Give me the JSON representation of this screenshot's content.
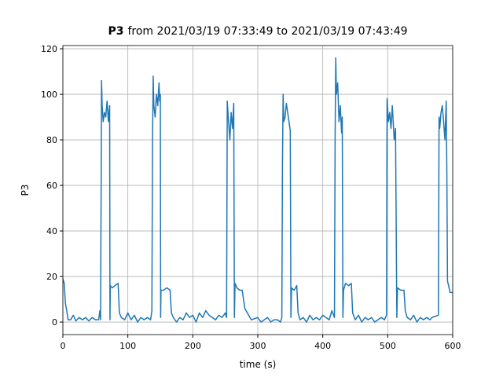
{
  "chart_data": {
    "type": "line",
    "title": [
      "P3",
      "from 2021/03/19 07:33:49 to 2021/03/19 07:43:49"
    ],
    "xlabel": "time (s)",
    "ylabel": "P3",
    "xlim": [
      0,
      600
    ],
    "ylim": [
      -5.5,
      121.4
    ],
    "xticks": [
      0,
      100,
      200,
      300,
      400,
      500,
      600
    ],
    "yticks": [
      0,
      20,
      40,
      60,
      80,
      100,
      120
    ],
    "grid": true,
    "x": [
      0,
      2,
      4,
      6,
      8,
      12,
      16,
      20,
      25,
      30,
      35,
      40,
      45,
      50,
      55,
      57,
      58,
      59,
      59.5,
      60.5,
      62,
      64,
      66,
      68,
      70,
      71,
      72,
      72.5,
      73,
      76,
      80,
      85,
      87,
      90,
      95,
      100,
      105,
      110,
      115,
      120,
      125,
      130,
      135,
      137,
      138,
      139,
      140,
      142,
      144,
      146,
      148,
      149,
      150,
      150.5,
      151,
      155,
      160,
      165,
      167,
      170,
      175,
      180,
      185,
      190,
      195,
      200,
      205,
      210,
      215,
      220,
      225,
      230,
      235,
      240,
      245,
      250,
      252,
      253,
      255,
      257,
      259,
      261,
      263,
      264,
      265,
      268,
      272,
      276,
      280,
      284,
      290,
      300,
      305,
      310,
      315,
      320,
      325,
      330,
      335,
      337,
      338,
      339,
      340,
      342,
      344,
      346,
      348,
      350,
      351,
      352,
      356,
      360,
      362,
      365,
      370,
      375,
      380,
      385,
      390,
      395,
      400,
      405,
      410,
      414,
      418,
      419,
      420,
      421,
      423,
      425,
      427,
      429,
      430,
      431,
      432,
      435,
      440,
      444,
      446,
      450,
      455,
      460,
      465,
      470,
      475,
      480,
      485,
      490,
      495,
      498,
      499,
      501,
      503,
      505,
      507,
      510,
      512,
      514,
      515,
      520,
      525,
      527,
      530,
      535,
      540,
      545,
      550,
      555,
      560,
      565,
      568,
      578,
      579,
      580,
      582,
      584,
      586,
      588,
      590,
      591,
      592,
      596,
      600
    ],
    "series": [
      {
        "name": "P3",
        "color": "#1f77b4",
        "values": [
          19,
          17,
          8,
          5,
          1,
          1,
          3,
          0.5,
          2,
          1,
          2,
          0.5,
          2,
          1,
          1,
          5,
          1,
          65,
          106,
          95,
          88,
          92,
          90,
          97,
          88,
          92,
          95,
          1,
          16,
          15,
          16,
          17,
          4,
          2,
          1,
          4,
          1,
          3,
          0,
          2,
          1,
          2,
          1,
          5,
          80,
          108,
          95,
          90,
          100,
          95,
          105,
          97,
          100,
          2,
          14,
          14,
          15,
          14,
          4,
          2,
          0,
          2,
          1,
          4,
          2,
          3,
          0,
          4,
          2,
          5,
          3,
          2,
          1,
          3,
          2,
          4,
          2,
          97,
          88,
          80,
          92,
          85,
          96,
          2,
          17,
          15,
          14,
          14,
          6,
          4,
          1,
          2,
          0,
          1,
          2,
          0,
          1,
          1,
          0,
          2,
          70,
          100,
          88,
          90,
          96,
          92,
          88,
          84,
          2,
          15,
          14,
          16,
          4,
          1,
          2,
          0,
          3,
          1,
          2,
          1,
          3,
          2,
          1,
          5,
          2,
          80,
          116,
          100,
          105,
          88,
          95,
          83,
          90,
          2,
          14,
          17,
          16,
          17,
          4,
          1,
          3,
          0,
          2,
          1,
          2,
          0,
          1,
          2,
          1,
          3,
          98,
          88,
          92,
          85,
          95,
          80,
          85,
          2,
          15,
          14,
          14,
          5,
          2,
          1,
          3,
          0,
          2,
          1,
          2,
          1,
          2,
          3,
          90,
          85,
          92,
          95,
          88,
          80,
          97,
          65,
          18,
          13,
          13
        ]
      }
    ]
  }
}
